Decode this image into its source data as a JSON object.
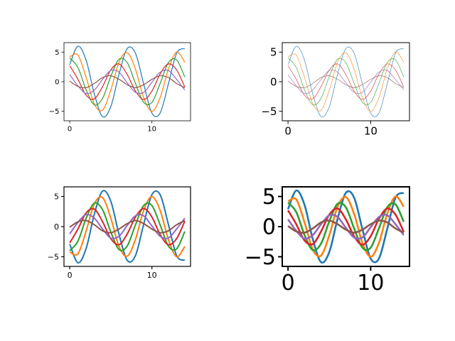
{
  "chart_data": [
    {
      "type": "line",
      "x": [
        0,
        1,
        2,
        3,
        4,
        5,
        6,
        7,
        8,
        9,
        10,
        11,
        12,
        13,
        14
      ],
      "xlim": [
        -0.7,
        14.7
      ],
      "ylim": [
        -6.6,
        6.6
      ],
      "xticks": [
        0,
        10
      ],
      "yticks": [
        {
          "value": -5,
          "label": "−5"
        },
        0,
        5
      ],
      "series": [
        {
          "color": "#1f77b4",
          "values": [
            2.9,
            6.0,
            3.6,
            -2.1,
            -5.9,
            -4.2,
            1.3,
            5.6,
            4.8,
            -0.4,
            -5.3,
            -5.3,
            -0.4,
            4.8,
            5.6
          ]
        },
        {
          "color": "#ff7f0e",
          "values": [
            4.2,
            4.5,
            0.7,
            -3.8,
            -4.8,
            -1.4,
            3.3,
            4.9,
            2.1,
            -2.7,
            -5.0,
            -2.7,
            2.1,
            5.0,
            3.3
          ]
        },
        {
          "color": "#2ca02c",
          "values": [
            4.0,
            2.4,
            -1.4,
            -3.9,
            -2.8,
            0.9,
            3.8,
            3.2,
            -0.3,
            -3.5,
            -3.5,
            -0.3,
            3.2,
            3.7,
            0.8
          ]
        },
        {
          "color": "#d62728",
          "values": [
            2.7,
            0.4,
            -2.3,
            -2.9,
            -0.8,
            2.0,
            3.0,
            1.2,
            -1.6,
            -3.0,
            -1.6,
            1.3,
            3.0,
            2.0,
            -0.9
          ]
        },
        {
          "color": "#9467bd",
          "values": [
            1.2,
            -0.7,
            -2.0,
            -1.4,
            0.4,
            1.9,
            1.6,
            -0.2,
            -1.8,
            -1.8,
            -0.1,
            1.6,
            1.9,
            0.4,
            -1.4
          ]
        },
        {
          "color": "#8c564b",
          "values": [
            0.1,
            -0.8,
            -1.0,
            -0.3,
            0.7,
            1.0,
            0.4,
            -0.5,
            -1.0,
            -0.5,
            0.4,
            1.0,
            0.7,
            -0.3,
            -1.0
          ]
        }
      ]
    },
    {
      "type": "line",
      "x": [
        0,
        1,
        2,
        3,
        4,
        5,
        6,
        7,
        8,
        9,
        10,
        11,
        12,
        13,
        14
      ],
      "xlim": [
        -0.7,
        14.7
      ],
      "ylim": [
        -6.6,
        6.6
      ],
      "xticks": [
        0,
        10
      ],
      "yticks": [
        {
          "value": -5,
          "label": "−5"
        },
        0,
        5
      ],
      "series": [
        {
          "color": "#1f77b4",
          "values": [
            2.9,
            6.0,
            3.6,
            -2.1,
            -5.9,
            -4.2,
            1.3,
            5.6,
            4.8,
            -0.4,
            -5.3,
            -5.3,
            -0.4,
            4.8,
            5.6
          ]
        },
        {
          "color": "#ff7f0e",
          "values": [
            4.2,
            4.5,
            0.7,
            -3.8,
            -4.8,
            -1.4,
            3.3,
            4.9,
            2.1,
            -2.7,
            -5.0,
            -2.7,
            2.1,
            5.0,
            3.3
          ]
        },
        {
          "color": "#2ca02c",
          "values": [
            4.0,
            2.4,
            -1.4,
            -3.9,
            -2.8,
            0.9,
            3.8,
            3.2,
            -0.3,
            -3.5,
            -3.5,
            -0.3,
            3.2,
            3.7,
            0.8
          ]
        },
        {
          "color": "#d62728",
          "values": [
            2.7,
            0.4,
            -2.3,
            -2.9,
            -0.8,
            2.0,
            3.0,
            1.2,
            -1.6,
            -3.0,
            -1.6,
            1.3,
            3.0,
            2.0,
            -0.9
          ]
        },
        {
          "color": "#9467bd",
          "values": [
            1.2,
            -0.7,
            -2.0,
            -1.4,
            0.4,
            1.9,
            1.6,
            -0.2,
            -1.8,
            -1.8,
            -0.1,
            1.6,
            1.9,
            0.4,
            -1.4
          ]
        },
        {
          "color": "#8c564b",
          "values": [
            0.1,
            -0.8,
            -1.0,
            -0.3,
            0.7,
            1.0,
            0.4,
            -0.5,
            -1.0,
            -0.5,
            0.4,
            1.0,
            0.7,
            -0.3,
            -1.0
          ]
        }
      ]
    },
    {
      "type": "line",
      "x": [
        0,
        1,
        2,
        3,
        4,
        5,
        6,
        7,
        8,
        9,
        10,
        11,
        12,
        13,
        14
      ],
      "xlim": [
        -0.7,
        14.7
      ],
      "ylim": [
        -6.6,
        6.6
      ],
      "xticks": [
        0,
        10
      ],
      "yticks": [
        {
          "value": -5,
          "label": "−5"
        },
        0,
        5
      ],
      "series": [
        {
          "color": "#1f77b4",
          "values": [
            -2.9,
            -6.0,
            -3.6,
            2.1,
            5.9,
            4.2,
            -1.3,
            -5.6,
            -4.8,
            0.4,
            5.3,
            5.3,
            0.4,
            -4.8,
            -5.6
          ]
        },
        {
          "color": "#ff7f0e",
          "values": [
            -4.2,
            -4.5,
            -0.7,
            3.8,
            4.8,
            1.4,
            -3.3,
            -4.9,
            -2.1,
            2.7,
            5.0,
            2.7,
            -2.1,
            -5.0,
            -3.3
          ]
        },
        {
          "color": "#2ca02c",
          "values": [
            -4.0,
            -2.4,
            1.4,
            3.9,
            2.8,
            -0.9,
            -3.8,
            -3.2,
            0.3,
            3.5,
            3.5,
            0.3,
            -3.2,
            -3.7,
            -0.8
          ]
        },
        {
          "color": "#d62728",
          "values": [
            -2.7,
            -0.4,
            2.3,
            2.9,
            0.8,
            -2.0,
            -3.0,
            -1.2,
            1.6,
            3.0,
            1.6,
            -1.3,
            -3.0,
            -2.0,
            0.9
          ]
        },
        {
          "color": "#9467bd",
          "values": [
            -1.2,
            0.7,
            2.0,
            1.4,
            -0.4,
            -1.9,
            -1.6,
            0.2,
            1.8,
            1.8,
            0.1,
            -1.6,
            -1.9,
            -0.4,
            1.4
          ]
        },
        {
          "color": "#8c564b",
          "values": [
            -0.1,
            0.8,
            1.0,
            0.3,
            -0.7,
            -1.0,
            -0.4,
            0.5,
            1.0,
            0.5,
            -0.4,
            -1.0,
            -0.7,
            0.3,
            1.0
          ]
        }
      ]
    },
    {
      "type": "line",
      "x": [
        0,
        1,
        2,
        3,
        4,
        5,
        6,
        7,
        8,
        9,
        10,
        11,
        12,
        13,
        14
      ],
      "xlim": [
        -0.7,
        14.7
      ],
      "ylim": [
        -6.6,
        6.6
      ],
      "xticks": [
        0,
        10
      ],
      "yticks": [
        {
          "value": -5,
          "label": "−5"
        },
        0,
        5
      ],
      "series": [
        {
          "color": "#1f77b4",
          "values": [
            2.9,
            6.0,
            3.6,
            -2.1,
            -5.9,
            -4.2,
            1.3,
            5.6,
            4.8,
            -0.4,
            -5.3,
            -5.3,
            -0.4,
            4.8,
            5.6
          ]
        },
        {
          "color": "#ff7f0e",
          "values": [
            4.2,
            4.5,
            0.7,
            -3.8,
            -4.8,
            -1.4,
            3.3,
            4.9,
            2.1,
            -2.7,
            -5.0,
            -2.7,
            2.1,
            5.0,
            3.3
          ]
        },
        {
          "color": "#2ca02c",
          "values": [
            4.0,
            2.4,
            -1.4,
            -3.9,
            -2.8,
            0.9,
            3.8,
            3.2,
            -0.3,
            -3.5,
            -3.5,
            -0.3,
            3.2,
            3.7,
            0.8
          ]
        },
        {
          "color": "#d62728",
          "values": [
            2.7,
            0.4,
            -2.3,
            -2.9,
            -0.8,
            2.0,
            3.0,
            1.2,
            -1.6,
            -3.0,
            -1.6,
            1.3,
            3.0,
            2.0,
            -0.9
          ]
        },
        {
          "color": "#9467bd",
          "values": [
            1.2,
            -0.7,
            -2.0,
            -1.4,
            0.4,
            1.9,
            1.6,
            -0.2,
            -1.8,
            -1.8,
            -0.1,
            1.6,
            1.9,
            0.4,
            -1.4
          ]
        },
        {
          "color": "#8c564b",
          "values": [
            0.1,
            -0.8,
            -1.0,
            -0.3,
            0.7,
            1.0,
            0.4,
            -0.5,
            -1.0,
            -0.5,
            0.4,
            1.0,
            0.7,
            -0.3,
            -1.0
          ]
        }
      ]
    }
  ]
}
